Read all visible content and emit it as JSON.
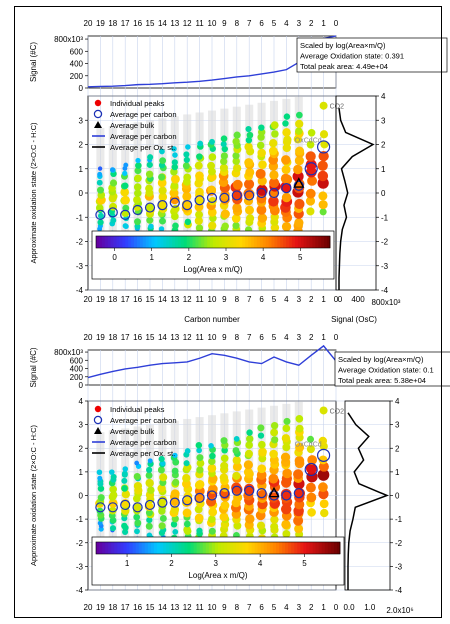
{
  "chart_data": [
    {
      "type": "scatter",
      "x_top_ticks": [
        "20",
        "19",
        "18",
        "17",
        "16",
        "15",
        "14",
        "13",
        "12",
        "11",
        "10",
        "9",
        "8",
        "7",
        "6",
        "5",
        "4",
        "3",
        "2",
        "1",
        "0"
      ],
      "x_bottom_ticks": [
        "20",
        "19",
        "18",
        "17",
        "16",
        "15",
        "14",
        "13",
        "12",
        "11",
        "10",
        "9",
        "8",
        "7",
        "6",
        "5",
        "4",
        "3",
        "2",
        "1",
        "0"
      ],
      "xlabel": "Carbon number",
      "ylabel": "Approximate oxidation state (2×O:C - H:C)",
      "ylim": [
        -4,
        4
      ],
      "y_ticks": [
        "-4",
        "-3",
        "-2",
        "-1",
        "0",
        "1",
        "2",
        "3"
      ],
      "right_y_ticks": [
        "4",
        "3",
        "2",
        "1",
        "0",
        "-1",
        "-2",
        "-3",
        "-4"
      ],
      "upper_panel": {
        "ylabel": "Signal (#C)",
        "y_ticks": [
          "800x10³",
          "600",
          "400",
          "200",
          "0"
        ],
        "series": [
          {
            "name": "Average per carbon",
            "x": [
              20,
              19,
              18,
              17,
              16,
              15,
              14,
              13,
              12,
              11,
              10,
              9,
              8,
              7,
              6,
              5,
              4,
              3,
              2,
              1,
              0
            ],
            "values": [
              20,
              25,
              30,
              40,
              55,
              60,
              70,
              85,
              95,
              110,
              130,
              155,
              180,
              200,
              230,
              260,
              300,
              420,
              560,
              810,
              850
            ]
          }
        ]
      },
      "info_box": [
        "Scaled by log(Area×m/Q)",
        "Average Oxidation state: 0.391",
        "Total peak area: 4.49e+04"
      ],
      "legend": [
        "Individual peaks",
        "Average per carbon",
        "Average bulk",
        "Average per carbon",
        "Average per Ox. st."
      ],
      "colorbar": {
        "label": "Log(Area x m/Q)",
        "ticks": [
          "0",
          "1",
          "2",
          "3",
          "4",
          "5"
        ],
        "range": [
          -0.5,
          5.8
        ]
      },
      "side_panel": {
        "xlabel": "Signal (OsC)",
        "x_ticks": [
          "0",
          "400",
          "800x10³"
        ],
        "profile": [
          [
            -4,
            0
          ],
          [
            -3.5,
            0
          ],
          [
            -3,
            10
          ],
          [
            -2.5,
            20
          ],
          [
            -2,
            40
          ],
          [
            -1.5,
            80
          ],
          [
            -1,
            180
          ],
          [
            -0.5,
            120
          ],
          [
            0,
            210
          ],
          [
            0.5,
            140
          ],
          [
            1,
            60
          ],
          [
            1.5,
            320
          ],
          [
            2,
            820
          ],
          [
            2.5,
            160
          ],
          [
            3,
            40
          ],
          [
            3.5,
            0
          ]
        ]
      },
      "annotations": [
        "CO2",
        "OxCdCd"
      ],
      "avg_per_carbon": [
        [
          19,
          -0.9
        ],
        [
          18,
          -0.8
        ],
        [
          17,
          -0.9
        ],
        [
          16,
          -0.7
        ],
        [
          15,
          -0.6
        ],
        [
          14,
          -0.5
        ],
        [
          13,
          -0.4
        ],
        [
          12,
          -0.5
        ],
        [
          11,
          -0.3
        ],
        [
          10,
          -0.2
        ],
        [
          9,
          -0.2
        ],
        [
          8,
          -0.1
        ],
        [
          7,
          -0.1
        ],
        [
          6,
          0.0
        ],
        [
          5,
          0.0
        ],
        [
          4,
          0.2
        ],
        [
          3,
          0.3
        ],
        [
          2,
          1.0
        ],
        [
          1,
          1.9
        ]
      ],
      "avg_bulk": [
        3,
        0.39
      ]
    },
    {
      "type": "scatter",
      "x_top_ticks": [
        "20",
        "19",
        "18",
        "17",
        "16",
        "15",
        "14",
        "13",
        "12",
        "11",
        "10",
        "9",
        "8",
        "7",
        "6",
        "5",
        "4",
        "3",
        "2",
        "1",
        "0"
      ],
      "x_bottom_ticks": [
        "20",
        "19",
        "18",
        "17",
        "16",
        "15",
        "14",
        "13",
        "12",
        "11",
        "10",
        "9",
        "8",
        "7",
        "6",
        "5",
        "4",
        "3",
        "2",
        "1",
        "0"
      ],
      "ylabel": "Approximate oxidation state (2×O:C - H:C)",
      "ylim": [
        -4,
        4
      ],
      "y_ticks": [
        "-4",
        "-3",
        "-2",
        "-1",
        "0",
        "1",
        "2",
        "3",
        "4"
      ],
      "right_y_ticks": [
        "4",
        "3",
        "2",
        "1",
        "0",
        "-1",
        "-2",
        "-3",
        "-4"
      ],
      "upper_panel": {
        "ylabel": "Signal (#C)",
        "y_ticks": [
          "800x10³",
          "600",
          "400",
          "200",
          "0"
        ],
        "series": [
          {
            "name": "Average per carbon",
            "x": [
              20,
              19,
              18,
              17,
              16,
              15,
              14,
              13,
              12,
              11,
              10,
              9,
              8,
              7,
              6,
              5,
              4,
              3,
              2,
              1,
              0
            ],
            "values": [
              180,
              260,
              330,
              390,
              430,
              480,
              520,
              540,
              560,
              650,
              760,
              720,
              650,
              560,
              520,
              680,
              560,
              480,
              720,
              950,
              580
            ]
          }
        ]
      },
      "info_box": [
        "Scaled by log(Area×m/Q)",
        "Average Oxidation state: 0.1",
        "Total peak area: 5.38e+04"
      ],
      "legend": [
        "Individual peaks",
        "Average per carbon",
        "Average bulk",
        "Average per carbon",
        "Average per Ox. st."
      ],
      "colorbar": {
        "label": "Log(Area x m/Q)",
        "ticks": [
          "1",
          "2",
          "3",
          "4",
          "5"
        ],
        "range": [
          0.3,
          5.8
        ]
      },
      "side_panel": {
        "xlabel": "",
        "x_ticks": [
          "0.0",
          "1.0",
          "2.0x10⁶"
        ],
        "profile": [
          [
            -4,
            0
          ],
          [
            -3.5,
            0
          ],
          [
            -3,
            0
          ],
          [
            -2.5,
            10
          ],
          [
            -2,
            30
          ],
          [
            -1.5,
            80
          ],
          [
            -1,
            190
          ],
          [
            -0.5,
            280
          ],
          [
            0,
            1500
          ],
          [
            0.5,
            420
          ],
          [
            1,
            240
          ],
          [
            1.5,
            600
          ],
          [
            2,
            400
          ],
          [
            2.5,
            800
          ],
          [
            3,
            300
          ],
          [
            3.5,
            0
          ]
        ]
      },
      "annotations": [
        "CO2",
        "OxCdCd"
      ],
      "avg_per_carbon": [
        [
          19,
          -0.5
        ],
        [
          18,
          -0.5
        ],
        [
          17,
          -0.4
        ],
        [
          16,
          -0.5
        ],
        [
          15,
          -0.4
        ],
        [
          14,
          -0.3
        ],
        [
          13,
          -0.3
        ],
        [
          12,
          -0.2
        ],
        [
          11,
          -0.1
        ],
        [
          10,
          0.0
        ],
        [
          9,
          0.1
        ],
        [
          8,
          0.2
        ],
        [
          7,
          0.2
        ],
        [
          6,
          0.1
        ],
        [
          5,
          0.0
        ],
        [
          4,
          0.0
        ],
        [
          3,
          0.1
        ],
        [
          2,
          1.1
        ],
        [
          1,
          1.7
        ]
      ],
      "avg_bulk": [
        5,
        0.1
      ]
    }
  ]
}
